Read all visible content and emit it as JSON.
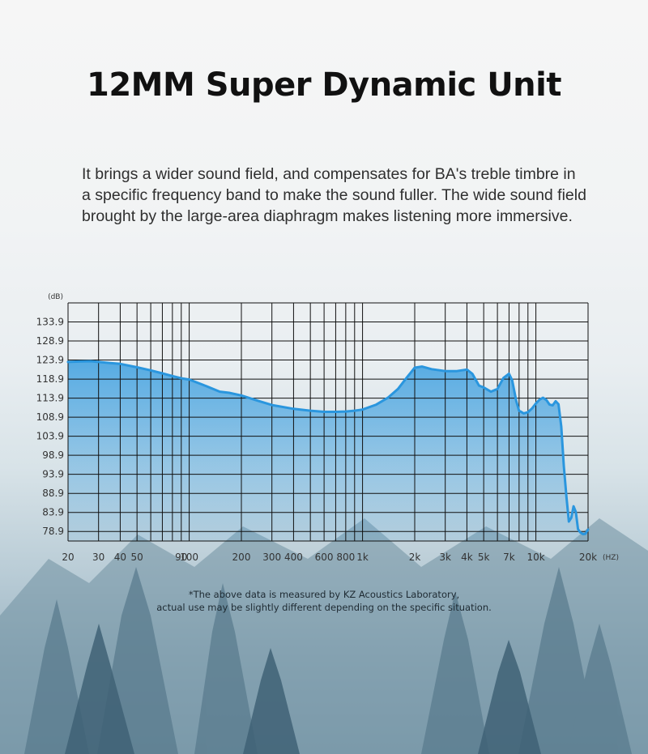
{
  "title": "12MM Super Dynamic Unit",
  "description": {
    "lines": [
      "It brings a wider sound field, and compensates for BA's treble timbre in",
      "a specific frequency band to make the sound fuller. The wide sound field",
      "brought by the large-area diaphragm makes listening more immersive."
    ]
  },
  "footnote": {
    "lines": [
      "*The above data is measured by KZ Acoustics Laboratory,",
      "actual use may be slightly different depending on the specific situation."
    ]
  },
  "chart_data": {
    "type": "area",
    "x_scale": "log",
    "xlim": [
      20,
      20000
    ],
    "ylim": [
      76.4,
      138.9
    ],
    "y_unit_label": "(dB)",
    "x_unit_label": "(HZ)",
    "grid": true,
    "line_color": "#2a96de",
    "fill_color": "#3c9fe0",
    "yticks": [
      {
        "value": 133.9,
        "label": "133.9"
      },
      {
        "value": 128.9,
        "label": "128.9"
      },
      {
        "value": 123.9,
        "label": "123.9"
      },
      {
        "value": 118.9,
        "label": "118.9"
      },
      {
        "value": 113.9,
        "label": "113.9"
      },
      {
        "value": 108.9,
        "label": "108.9"
      },
      {
        "value": 103.9,
        "label": "103.9"
      },
      {
        "value": 98.9,
        "label": "98.9"
      },
      {
        "value": 93.9,
        "label": "93.9"
      },
      {
        "value": 88.9,
        "label": "88.9"
      },
      {
        "value": 83.9,
        "label": "83.9"
      },
      {
        "value": 78.9,
        "label": "78.9"
      }
    ],
    "xticks": [
      {
        "value": 20,
        "label": "20"
      },
      {
        "value": 30,
        "label": "30"
      },
      {
        "value": 40,
        "label": "40"
      },
      {
        "value": 50,
        "label": "50"
      },
      {
        "value": 90,
        "label": "90"
      },
      {
        "value": 100,
        "label": "100"
      },
      {
        "value": 200,
        "label": "200"
      },
      {
        "value": 300,
        "label": "300"
      },
      {
        "value": 400,
        "label": "400"
      },
      {
        "value": 600,
        "label": "600"
      },
      {
        "value": 800,
        "label": "800"
      },
      {
        "value": 1000,
        "label": "1k"
      },
      {
        "value": 2000,
        "label": "2k"
      },
      {
        "value": 3000,
        "label": "3k"
      },
      {
        "value": 4000,
        "label": "4k"
      },
      {
        "value": 5000,
        "label": "5k"
      },
      {
        "value": 7000,
        "label": "7k"
      },
      {
        "value": 10000,
        "label": "10k"
      },
      {
        "value": 20000,
        "label": "20k"
      }
    ],
    "x_gridlines": [
      20,
      30,
      40,
      50,
      60,
      70,
      80,
      90,
      100,
      200,
      300,
      400,
      500,
      600,
      700,
      800,
      900,
      1000,
      2000,
      3000,
      4000,
      5000,
      6000,
      7000,
      8000,
      9000,
      10000,
      20000
    ],
    "series": [
      {
        "x": [
          20,
          23,
          27,
          30,
          35,
          40,
          50,
          60,
          70,
          80,
          90,
          100,
          120,
          150,
          170,
          200,
          250,
          300,
          400,
          500,
          600,
          700,
          800,
          900,
          1000,
          1200,
          1400,
          1600,
          1800,
          2000,
          2200,
          2500,
          3000,
          3500,
          4000,
          4300,
          4700,
          5000,
          5500,
          6000,
          6500,
          7000,
          7300,
          7700,
          8000,
          8500,
          9000,
          9500,
          10000,
          10500,
          11000,
          11500,
          12000,
          12500,
          13000,
          13500,
          14000,
          14500,
          15000,
          15500,
          16000,
          16500,
          17000,
          17500,
          18000,
          18700,
          19300,
          20000
        ],
        "y": [
          123.4,
          123.5,
          123.6,
          123.4,
          123.1,
          122.9,
          122.0,
          121.2,
          120.4,
          119.7,
          119.1,
          118.8,
          117.4,
          115.6,
          115.3,
          114.6,
          113.2,
          112.1,
          111.1,
          110.6,
          110.3,
          110.3,
          110.4,
          110.6,
          110.9,
          112.2,
          114.0,
          116.3,
          119.3,
          121.9,
          122.2,
          121.5,
          121.0,
          121.0,
          121.4,
          120.3,
          117.2,
          116.7,
          115.6,
          116.3,
          119.2,
          120.3,
          118.6,
          113.2,
          110.6,
          109.9,
          110.2,
          111.2,
          112.5,
          113.5,
          114.0,
          113.4,
          112.2,
          112.0,
          113.1,
          112.3,
          106.5,
          96.0,
          88.0,
          81.5,
          82.5,
          85.5,
          84.0,
          79.5,
          78.7,
          78.2,
          78.3,
          79.4
        ]
      }
    ]
  }
}
